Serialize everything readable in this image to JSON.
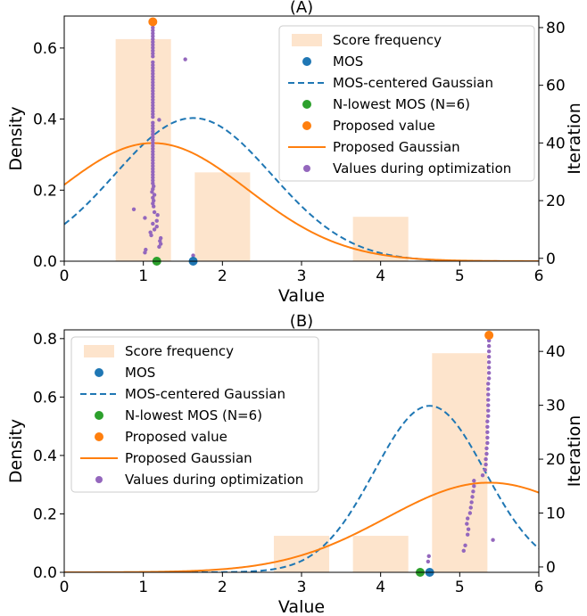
{
  "colors": {
    "bar": "#fde4cc",
    "mos": "#1f77b4",
    "mos_gaussian": "#1f77b4",
    "n_lowest": "#2ca02c",
    "proposed": "#ff7f0e",
    "iterations": "#9467bd"
  },
  "legend_labels": [
    "Score frequency",
    "MOS",
    "MOS-centered Gaussian",
    "N-lowest MOS (N=6)",
    "Proposed value",
    "Proposed Gaussian",
    "Values during optimization"
  ],
  "chart_data": [
    {
      "type": "bar",
      "title": "(A)",
      "xlabel": "Value",
      "ylabel": "Density",
      "y2label": "Iteration",
      "xlim": [
        0,
        6
      ],
      "ylim": [
        0,
        0.69
      ],
      "y2lim": [
        -1,
        84
      ],
      "x_ticks": [
        0,
        1,
        2,
        3,
        4,
        5,
        6
      ],
      "y_ticks": [
        0.0,
        0.2,
        0.4,
        0.6
      ],
      "y_tick_labels": [
        "0.0",
        "0.2",
        "0.4",
        "0.6"
      ],
      "y2_ticks": [
        0,
        20,
        40,
        60,
        80
      ],
      "grid": false,
      "legend_position": "top-right",
      "score_frequency": {
        "x": [
          1,
          2,
          4
        ],
        "values": [
          0.625,
          0.25,
          0.125
        ],
        "width": 0.7
      },
      "mos": 1.63,
      "mos_gaussian": {
        "mean": 1.63,
        "std": 0.99
      },
      "n_lowest_mos": 1.17,
      "proposed_value": 1.12,
      "proposed_gaussian": {
        "mean": 1.12,
        "std": 1.2
      },
      "optimization_values": {
        "iterations": [
          1,
          2,
          3,
          4,
          5,
          6,
          7,
          8,
          9,
          10,
          11,
          12,
          13,
          14,
          15,
          16,
          17,
          18,
          19,
          20,
          21,
          22,
          23,
          24,
          25,
          26,
          27,
          28,
          29,
          30,
          31,
          32,
          33,
          34,
          35,
          36,
          37,
          38,
          39,
          40,
          41,
          42,
          43,
          44,
          45,
          46,
          47,
          48,
          49,
          50,
          51,
          52,
          53,
          54,
          55,
          56,
          57,
          58,
          59,
          60,
          61,
          62,
          63,
          64,
          65,
          66,
          67,
          68,
          69,
          70,
          71,
          72,
          73,
          74,
          75,
          76,
          77,
          78,
          79,
          80,
          81
        ],
        "values": [
          1.63,
          1.02,
          1.03,
          1.2,
          1.22,
          1.21,
          1.22,
          1.1,
          1.09,
          1.14,
          1.17,
          1.12,
          1.17,
          1.02,
          1.18,
          1.14,
          0.88,
          1.13,
          1.12,
          1.13,
          1.12,
          1.14,
          1.11,
          1.12,
          1.13,
          1.12,
          1.12,
          1.12,
          1.12,
          1.12,
          1.12,
          1.12,
          1.12,
          1.12,
          1.12,
          1.12,
          1.12,
          1.12,
          1.12,
          1.12,
          1.12,
          1.12,
          1.12,
          1.12,
          1.12,
          1.12,
          1.12,
          1.2,
          1.12,
          1.12,
          1.12,
          1.12,
          1.12,
          1.12,
          1.12,
          1.12,
          1.12,
          1.12,
          1.12,
          1.12,
          1.12,
          1.12,
          1.12,
          1.12,
          1.12,
          1.12,
          1.12,
          1.12,
          1.53,
          1.12,
          1.12,
          1.12,
          1.12,
          1.12,
          1.12,
          1.12,
          1.12,
          1.12,
          1.12,
          1.12,
          1.12
        ],
        "final_iteration": 82
      }
    },
    {
      "type": "bar",
      "title": "(B)",
      "xlabel": "Value",
      "ylabel": "Density",
      "y2label": "Iteration",
      "xlim": [
        0,
        6
      ],
      "ylim": [
        0,
        0.83
      ],
      "y2lim": [
        -1,
        44
      ],
      "x_ticks": [
        0,
        1,
        2,
        3,
        4,
        5,
        6
      ],
      "y_ticks": [
        0.0,
        0.2,
        0.4,
        0.6,
        0.8
      ],
      "y_tick_labels": [
        "0.0",
        "0.2",
        "0.4",
        "0.6",
        "0.8"
      ],
      "y2_ticks": [
        0,
        10,
        20,
        30,
        40
      ],
      "grid": false,
      "legend_position": "top-left",
      "score_frequency": {
        "x": [
          3,
          4,
          5
        ],
        "values": [
          0.125,
          0.125,
          0.75
        ],
        "width": 0.7
      },
      "mos": 4.62,
      "mos_gaussian": {
        "mean": 4.62,
        "std": 0.7
      },
      "n_lowest_mos": 4.5,
      "proposed_value": 5.37,
      "proposed_gaussian": {
        "mean": 5.37,
        "std": 1.3
      },
      "optimization_values": {
        "iterations": [
          1,
          2,
          3,
          4,
          5,
          6,
          7,
          8,
          9,
          10,
          11,
          12,
          13,
          14,
          15,
          16,
          17,
          18,
          19,
          20,
          21,
          22,
          23,
          24,
          25,
          26,
          27,
          28,
          29,
          30,
          31,
          32,
          33,
          34,
          35,
          36,
          37,
          38,
          39,
          40,
          41,
          42
        ],
        "values": [
          4.6,
          4.61,
          5.05,
          5.07,
          5.42,
          5.1,
          5.11,
          5.09,
          5.1,
          5.13,
          5.14,
          5.15,
          5.16,
          5.17,
          5.18,
          5.18,
          5.29,
          5.32,
          5.33,
          5.33,
          5.34,
          5.34,
          5.35,
          5.35,
          5.35,
          5.35,
          5.35,
          5.36,
          5.36,
          5.36,
          5.36,
          5.36,
          5.36,
          5.36,
          5.37,
          5.37,
          5.37,
          5.37,
          5.37,
          5.37,
          5.37,
          5.37
        ],
        "final_iteration": 43
      }
    }
  ]
}
